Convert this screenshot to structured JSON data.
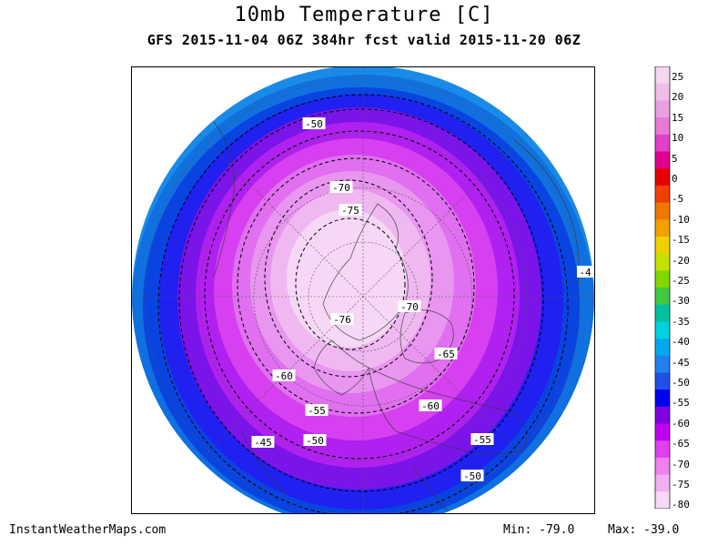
{
  "title": "10mb Temperature [C]",
  "subtitle": "GFS 2015-11-04 06Z 384hr fcst valid 2015-11-20 06Z",
  "footer": {
    "site": "InstantWeatherMaps.com",
    "min_label": "Min: -79.0",
    "max_label": "Max: -39.0"
  },
  "colorbar": {
    "levels": [
      "25",
      "20",
      "15",
      "10",
      "5",
      "0",
      "-5",
      "-10",
      "-15",
      "-20",
      "-25",
      "-30",
      "-35",
      "-40",
      "-45",
      "-50",
      "-55",
      "-60",
      "-65",
      "-70",
      "-75",
      "-80"
    ],
    "colors": [
      "#f5d6f0",
      "#f0bde8",
      "#ec9fe0",
      "#e87ad6",
      "#e040c8",
      "#e0008c",
      "#e80000",
      "#f04000",
      "#f07800",
      "#f0a000",
      "#f0d000",
      "#c8e000",
      "#80d800",
      "#40c840",
      "#00c0a0",
      "#00d0e0",
      "#00a8f0",
      "#2080f0",
      "#2050e8",
      "#0000f0",
      "#8000e0",
      "#c000f0",
      "#e040f0",
      "#f080f0",
      "#f0b0f0",
      "#f8d8f8"
    ]
  },
  "contour_labels": [
    "-50",
    "-70",
    "-75",
    "-70",
    "-76",
    "-65",
    "-60",
    "-60",
    "-55",
    "-50",
    "-45",
    "-55",
    "-50",
    "-4"
  ],
  "map": {
    "projection": "north polar stereographic",
    "ring_colors": [
      "#1a8ae8",
      "#1070e0",
      "#0a44e0",
      "#2020f0",
      "#7a14e8",
      "#b020f0",
      "#d640f0",
      "#e070f0",
      "#e896f0",
      "#f0b8f0",
      "#f6d8f6"
    ]
  }
}
